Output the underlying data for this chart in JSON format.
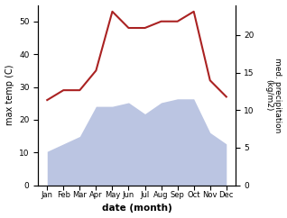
{
  "months": [
    "Jan",
    "Feb",
    "Mar",
    "Apr",
    "May",
    "Jun",
    "Jul",
    "Aug",
    "Sep",
    "Oct",
    "Nov",
    "Dec"
  ],
  "temp_max": [
    26,
    29,
    29,
    35,
    53,
    48,
    48,
    50,
    50,
    53,
    32,
    27
  ],
  "precip": [
    4.5,
    5.5,
    6.5,
    10.5,
    10.5,
    11.0,
    9.5,
    11.0,
    11.5,
    11.5,
    7.0,
    5.5
  ],
  "temp_color": "#aa2222",
  "precip_fill_color": "#b0bbdd",
  "ylabel_left": "max temp (C)",
  "ylabel_right": "med. precipitation\n(kg/m2)",
  "xlabel": "date (month)",
  "ylim_left": [
    0,
    55
  ],
  "ylim_right": [
    0,
    24
  ],
  "yticks_left": [
    0,
    10,
    20,
    30,
    40,
    50
  ],
  "yticks_right": [
    0,
    5,
    10,
    15,
    20
  ],
  "figsize": [
    3.18,
    2.42
  ],
  "dpi": 100
}
